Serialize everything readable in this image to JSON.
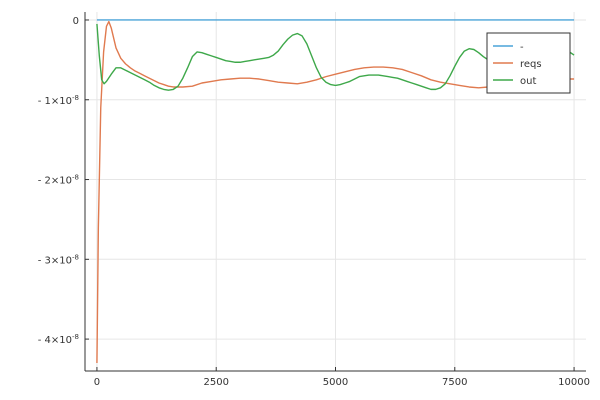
{
  "chart_data": {
    "type": "line",
    "title": "",
    "xlabel": "",
    "ylabel": "",
    "xlim": [
      -250,
      10250
    ],
    "ylim": [
      -4.4e-08,
      1e-09
    ],
    "grid": true,
    "legend_position": "top-right",
    "x_ticks": [
      {
        "value": 0,
        "label": "0"
      },
      {
        "value": 2500,
        "label": "2500"
      },
      {
        "value": 5000,
        "label": "5000"
      },
      {
        "value": 7500,
        "label": "7500"
      },
      {
        "value": 10000,
        "label": "10000"
      }
    ],
    "y_ticks": [
      {
        "value": 0,
        "label": "0"
      },
      {
        "value": -1e-08,
        "label": "- 1×10",
        "exp": "-8"
      },
      {
        "value": -2e-08,
        "label": "- 2×10",
        "exp": "-8"
      },
      {
        "value": -3e-08,
        "label": "- 3×10",
        "exp": "-8"
      },
      {
        "value": -4e-08,
        "label": "- 4×10",
        "exp": "-8"
      }
    ],
    "series": [
      {
        "name": "-",
        "color": "#4aa3d8",
        "x": [
          0,
          10000
        ],
        "y": [
          0,
          0
        ]
      },
      {
        "name": "reqs",
        "color": "#e07a4f",
        "x": [
          0,
          30,
          80,
          140,
          200,
          250,
          300,
          400,
          500,
          600,
          700,
          800,
          900,
          1000,
          1100,
          1200,
          1300,
          1400,
          1500,
          1600,
          1700,
          1800,
          2000,
          2200,
          2400,
          2600,
          2800,
          3000,
          3200,
          3400,
          3600,
          3800,
          4000,
          4200,
          4400,
          4600,
          4800,
          5000,
          5200,
          5400,
          5600,
          5800,
          6000,
          6200,
          6400,
          6600,
          6800,
          7000,
          7200,
          7400,
          7600,
          7800,
          8000,
          8200,
          8400,
          8600,
          8800,
          9000,
          9200,
          9400,
          9600,
          9800,
          10000
        ],
        "y": [
          -4.3e-08,
          -2.6e-08,
          -1.1e-08,
          -4e-09,
          -8e-10,
          -2e-10,
          -1e-09,
          -3.5e-09,
          -4.8e-09,
          -5.5e-09,
          -6e-09,
          -6.4e-09,
          -6.7e-09,
          -7e-09,
          -7.3e-09,
          -7.6e-09,
          -7.9e-09,
          -8.1e-09,
          -8.3e-09,
          -8.4e-09,
          -8.4e-09,
          -8.4e-09,
          -8.3e-09,
          -7.9e-09,
          -7.7e-09,
          -7.5e-09,
          -7.4e-09,
          -7.3e-09,
          -7.3e-09,
          -7.4e-09,
          -7.6e-09,
          -7.8e-09,
          -7.9e-09,
          -8e-09,
          -7.8e-09,
          -7.5e-09,
          -7.1e-09,
          -6.8e-09,
          -6.5e-09,
          -6.2e-09,
          -6e-09,
          -5.9e-09,
          -5.9e-09,
          -6e-09,
          -6.2e-09,
          -6.6e-09,
          -7e-09,
          -7.5e-09,
          -7.8e-09,
          -8e-09,
          -8.2e-09,
          -8.4e-09,
          -8.5e-09,
          -8.4e-09,
          -8.2e-09,
          -8e-09,
          -7.8e-09,
          -7.7e-09,
          -7.6e-09,
          -7.5e-09,
          -7.4e-09,
          -7.4e-09,
          -7.4e-09
        ]
      },
      {
        "name": "out",
        "color": "#3ea84a",
        "x": [
          0,
          50,
          100,
          150,
          200,
          300,
          400,
          500,
          600,
          700,
          800,
          900,
          1000,
          1100,
          1200,
          1300,
          1400,
          1500,
          1600,
          1700,
          1800,
          1900,
          2000,
          2100,
          2200,
          2300,
          2400,
          2500,
          2600,
          2700,
          2800,
          2900,
          3000,
          3100,
          3200,
          3300,
          3400,
          3500,
          3600,
          3700,
          3800,
          3900,
          4000,
          4100,
          4200,
          4300,
          4400,
          4500,
          4600,
          4700,
          4800,
          4900,
          5000,
          5100,
          5200,
          5300,
          5400,
          5500,
          5600,
          5700,
          5800,
          5900,
          6000,
          6100,
          6200,
          6300,
          6400,
          6500,
          6600,
          6700,
          6800,
          6900,
          7000,
          7100,
          7200,
          7300,
          7400,
          7500,
          7600,
          7700,
          7800,
          7900,
          8000,
          8100,
          8200,
          8300,
          8400,
          8500,
          8600,
          8700,
          8800,
          8900,
          9000,
          9100,
          9200,
          9300,
          9400,
          9500,
          9600,
          9700,
          9800,
          9900,
          10000
        ],
        "y": [
          -5e-10,
          -4.5e-09,
          -7.5e-09,
          -8e-09,
          -7.7e-09,
          -6.8e-09,
          -6e-09,
          -6e-09,
          -6.3e-09,
          -6.6e-09,
          -6.9e-09,
          -7.2e-09,
          -7.5e-09,
          -7.8e-09,
          -8.2e-09,
          -8.5e-09,
          -8.7e-09,
          -8.8e-09,
          -8.7e-09,
          -8.3e-09,
          -7.3e-09,
          -6e-09,
          -4.6e-09,
          -4e-09,
          -4.1e-09,
          -4.3e-09,
          -4.5e-09,
          -4.7e-09,
          -4.9e-09,
          -5.1e-09,
          -5.2e-09,
          -5.3e-09,
          -5.3e-09,
          -5.2e-09,
          -5.1e-09,
          -5e-09,
          -4.9e-09,
          -4.8e-09,
          -4.7e-09,
          -4.4e-09,
          -3.9e-09,
          -3.1e-09,
          -2.4e-09,
          -1.9e-09,
          -1.7e-09,
          -2e-09,
          -3e-09,
          -4.5e-09,
          -6e-09,
          -7.2e-09,
          -7.8e-09,
          -8.1e-09,
          -8.2e-09,
          -8.1e-09,
          -7.9e-09,
          -7.7e-09,
          -7.4e-09,
          -7.1e-09,
          -7e-09,
          -6.9e-09,
          -6.9e-09,
          -6.9e-09,
          -7e-09,
          -7.1e-09,
          -7.2e-09,
          -7.3e-09,
          -7.5e-09,
          -7.7e-09,
          -7.9e-09,
          -8.1e-09,
          -8.3e-09,
          -8.5e-09,
          -8.7e-09,
          -8.7e-09,
          -8.5e-09,
          -8e-09,
          -7e-09,
          -5.8e-09,
          -4.7e-09,
          -3.9e-09,
          -3.6e-09,
          -3.7e-09,
          -4.1e-09,
          -4.6e-09,
          -5e-09,
          -5.2e-09,
          -5.3e-09,
          -5.2e-09,
          -5e-09,
          -4.7e-09,
          -4.3e-09,
          -4e-09,
          -3.7e-09,
          -3.5e-09,
          -3.4e-09,
          -3.4e-09,
          -3.5e-09,
          -3.6e-09,
          -3.6e-09,
          -3.6e-09,
          -3.7e-09,
          -4e-09,
          -4.4e-09
        ]
      }
    ]
  }
}
